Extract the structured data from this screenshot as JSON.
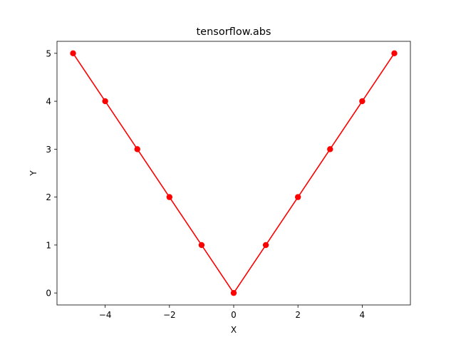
{
  "chart_data": {
    "type": "line",
    "title": "tensorflow.abs",
    "xlabel": "X",
    "ylabel": "Y",
    "xlim": [
      -5.5,
      5.5
    ],
    "ylim": [
      -0.25,
      5.25
    ],
    "xticks": [
      -4,
      -2,
      0,
      2,
      4
    ],
    "xtick_labels": [
      "−4",
      "−2",
      "0",
      "2",
      "4"
    ],
    "yticks": [
      0,
      1,
      2,
      3,
      4,
      5
    ],
    "ytick_labels": [
      "0",
      "1",
      "2",
      "3",
      "4",
      "5"
    ],
    "grid": false,
    "series": [
      {
        "color": "#ff0000",
        "marker": "circle",
        "x": [
          -5,
          -4,
          -3,
          -2,
          -1,
          0,
          1,
          2,
          3,
          4,
          5
        ],
        "y": [
          5,
          4,
          3,
          2,
          1,
          0,
          1,
          2,
          3,
          4,
          5
        ]
      }
    ]
  }
}
